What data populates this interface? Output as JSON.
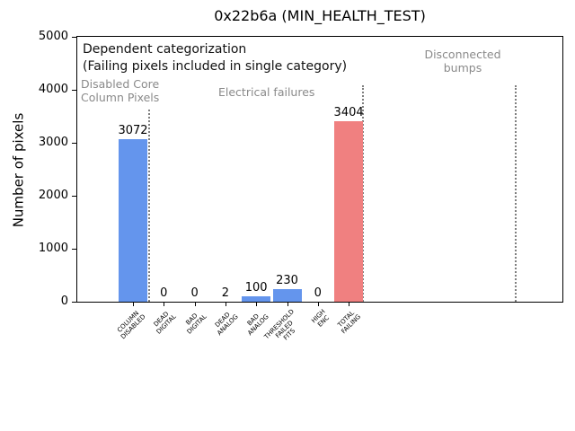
{
  "chart_data": {
    "type": "bar",
    "title": "0x22b6a (MIN_HEALTH_TEST)",
    "ylabel": "Number of pixels",
    "xlabel": "",
    "ylim": [
      0,
      5000
    ],
    "yticks": [
      0,
      1000,
      2000,
      3000,
      4000,
      5000
    ],
    "grid": false,
    "legend": false,
    "categories": [
      "COLUMN\nDISABLED",
      "DEAD\nDIGITAL",
      "BAD\nDIGITAL",
      "DEAD\nANALOG",
      "BAD\nANALOG",
      "THRESHOLD\nFAILED\nFITS",
      "HIGH\nENC",
      "TOTAL\nFAILING"
    ],
    "values": [
      3072,
      0,
      0,
      2,
      100,
      230,
      0,
      3404
    ],
    "bar_value_labels": [
      "3072",
      "0",
      "0",
      "2",
      "100",
      "230",
      "0",
      "3404"
    ],
    "bar_colors": [
      "#6495ED",
      "#6495ED",
      "#6495ED",
      "#6495ED",
      "#6495ED",
      "#6495ED",
      "#6495ED",
      "#F08080"
    ],
    "annotations": [
      {
        "text": "Dependent categorization",
        "color": "#111111"
      },
      {
        "text": "(Failing pixels included in single category)",
        "color": "#111111"
      },
      {
        "text": "Disabled Core\nColumn Pixels",
        "color": "#8a8a8a"
      },
      {
        "text": "Electrical failures",
        "color": "#8a8a8a"
      },
      {
        "text": "Disconnected\nbumps",
        "color": "#8a8a8a"
      }
    ],
    "separator_lines": {
      "style": "dotted",
      "color": "#7f7f7f",
      "count": 3
    }
  }
}
